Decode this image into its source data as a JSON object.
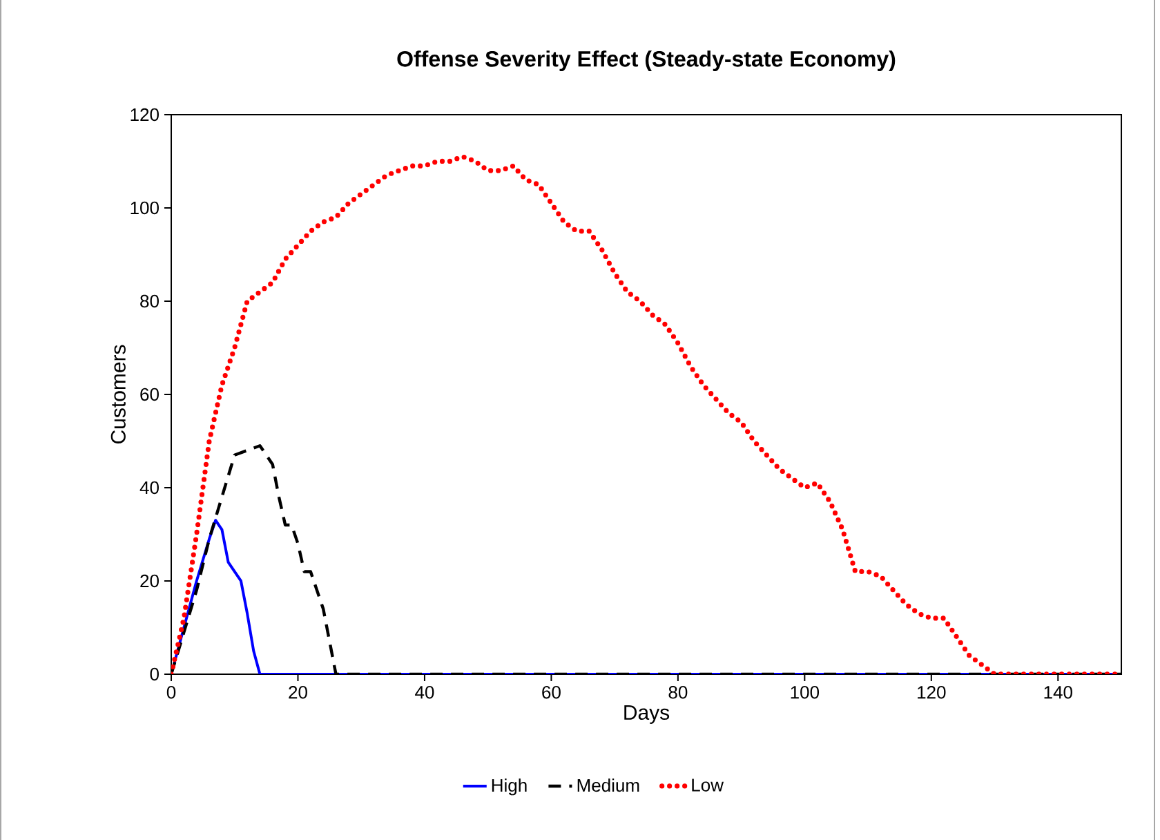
{
  "chart_data": {
    "type": "line",
    "title": "Offense Severity Effect (Steady-state Economy)",
    "xlabel": "Days",
    "ylabel": "Customers",
    "xlim": [
      0,
      150
    ],
    "xticks": [
      0,
      20,
      40,
      60,
      80,
      100,
      120,
      140
    ],
    "ylim": [
      0,
      120
    ],
    "yticks": [
      0,
      20,
      40,
      60,
      80,
      100,
      120
    ],
    "grid": false,
    "legend": "bottom",
    "series": [
      {
        "name": "High",
        "color": "#0000ff",
        "line_style": "solid",
        "x": [
          0,
          2,
          4,
          6,
          7,
          8,
          9,
          10,
          11,
          12,
          13,
          14,
          150
        ],
        "values": [
          0,
          10,
          20,
          29,
          33,
          31,
          24,
          22,
          20,
          13,
          5,
          0,
          0
        ]
      },
      {
        "name": "Medium",
        "color": "#000000",
        "line_style": "dashed",
        "x": [
          0,
          2,
          4,
          6,
          8,
          10,
          12,
          14,
          16,
          17,
          18,
          19,
          20,
          21,
          22,
          24,
          26,
          150
        ],
        "values": [
          0,
          9,
          18,
          29,
          38,
          47,
          48,
          49,
          45,
          38,
          32,
          32,
          28,
          22,
          22,
          14,
          0,
          0
        ]
      },
      {
        "name": "Low",
        "color": "#ff0000",
        "line_style": "dotted",
        "x": [
          0,
          2,
          4,
          6,
          8,
          10,
          12,
          14,
          16,
          18,
          20,
          22,
          24,
          26,
          28,
          30,
          32,
          34,
          36,
          38,
          40,
          42,
          44,
          46,
          48,
          50,
          52,
          54,
          56,
          58,
          60,
          62,
          64,
          66,
          68,
          70,
          72,
          74,
          76,
          78,
          80,
          82,
          84,
          86,
          88,
          90,
          92,
          94,
          96,
          98,
          100,
          102,
          104,
          106,
          108,
          110,
          112,
          114,
          116,
          118,
          120,
          122,
          124,
          126,
          128,
          130,
          132,
          150
        ],
        "values": [
          0,
          12,
          30,
          50,
          62,
          70,
          80,
          82,
          84,
          89,
          92,
          95,
          97,
          98,
          101,
          103,
          105,
          107,
          108,
          109,
          109,
          110,
          110,
          111,
          110,
          108,
          108,
          109,
          106,
          105,
          101,
          97,
          95,
          95,
          91,
          86,
          82,
          80,
          77,
          75,
          71,
          66,
          62,
          59,
          56,
          54,
          50,
          47,
          44,
          42,
          40,
          41,
          37,
          31,
          22,
          22,
          21,
          18,
          15,
          13,
          12,
          12,
          8,
          4,
          2,
          0,
          0,
          0
        ]
      }
    ]
  }
}
